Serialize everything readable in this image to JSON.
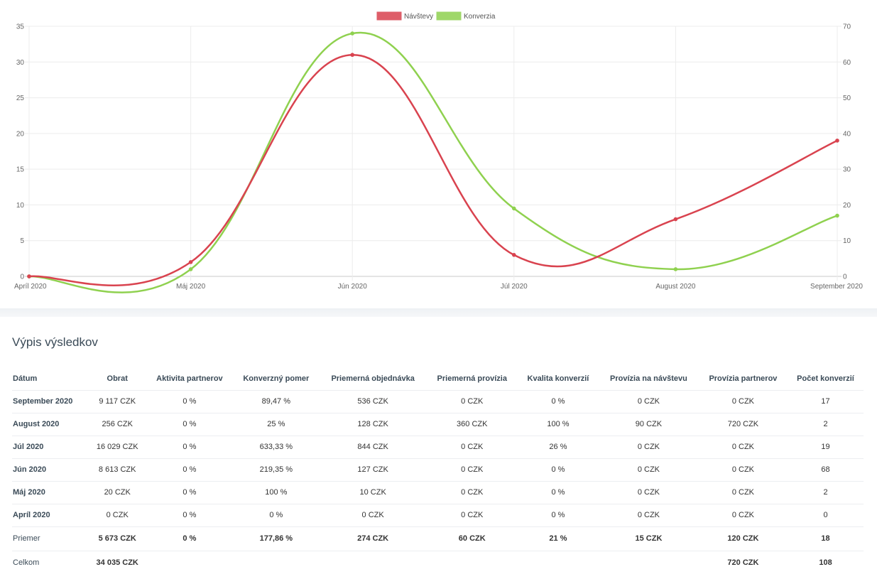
{
  "chart_data": {
    "type": "line",
    "categories": [
      "Apríl 2020",
      "Máj 2020",
      "Jún 2020",
      "Júl 2020",
      "August 2020",
      "September 2020"
    ],
    "series": [
      {
        "name": "Návštevy",
        "axis": "left",
        "color": "#d9434f",
        "values": [
          0,
          2,
          31,
          3,
          8,
          19
        ]
      },
      {
        "name": "Konverzia",
        "axis": "right",
        "color": "#8fd14f",
        "values": [
          0,
          2,
          68,
          19,
          2,
          17
        ]
      }
    ],
    "y_left": {
      "min": 0,
      "max": 35,
      "ticks": [
        "0",
        "5",
        "10",
        "15",
        "20",
        "25",
        "30",
        "35"
      ]
    },
    "y_right": {
      "min": 0,
      "max": 70,
      "ticks": [
        "0",
        "10",
        "20",
        "30",
        "40",
        "50",
        "60",
        "70"
      ]
    },
    "grid": true,
    "legend_position": "top-center",
    "curve": "smooth"
  },
  "results": {
    "title": "Výpis výsledkov",
    "columns": [
      "Dátum",
      "Obrat",
      "Aktivita partnerov",
      "Konverzný pomer",
      "Priemerná objednávka",
      "Priemerná provízia",
      "Kvalita konverzií",
      "Provízia na návštevu",
      "Provízia partnerov",
      "Počet konverzií"
    ],
    "rows": [
      [
        "September 2020",
        "9 117 CZK",
        "0 %",
        "89,47 %",
        "536 CZK",
        "0 CZK",
        "0 %",
        "0 CZK",
        "0 CZK",
        "17"
      ],
      [
        "August 2020",
        "256 CZK",
        "0 %",
        "25 %",
        "128 CZK",
        "360 CZK",
        "100 %",
        "90 CZK",
        "720 CZK",
        "2"
      ],
      [
        "Júl 2020",
        "16 029 CZK",
        "0 %",
        "633,33 %",
        "844 CZK",
        "0 CZK",
        "26 %",
        "0 CZK",
        "0 CZK",
        "19"
      ],
      [
        "Jún 2020",
        "8 613 CZK",
        "0 %",
        "219,35 %",
        "127 CZK",
        "0 CZK",
        "0 %",
        "0 CZK",
        "0 CZK",
        "68"
      ],
      [
        "Máj 2020",
        "20 CZK",
        "0 %",
        "100 %",
        "10 CZK",
        "0 CZK",
        "0 %",
        "0 CZK",
        "0 CZK",
        "2"
      ],
      [
        "Apríl 2020",
        "0 CZK",
        "0 %",
        "0 %",
        "0 CZK",
        "0 CZK",
        "0 %",
        "0 CZK",
        "0 CZK",
        "0"
      ]
    ],
    "average": [
      "Priemer",
      "5 673 CZK",
      "0 %",
      "177,86 %",
      "274 CZK",
      "60 CZK",
      "21 %",
      "15 CZK",
      "120 CZK",
      "18"
    ],
    "total": [
      "Celkom",
      "34 035 CZK",
      "",
      "",
      "",
      "",
      "",
      "",
      "720 CZK",
      "108"
    ]
  }
}
